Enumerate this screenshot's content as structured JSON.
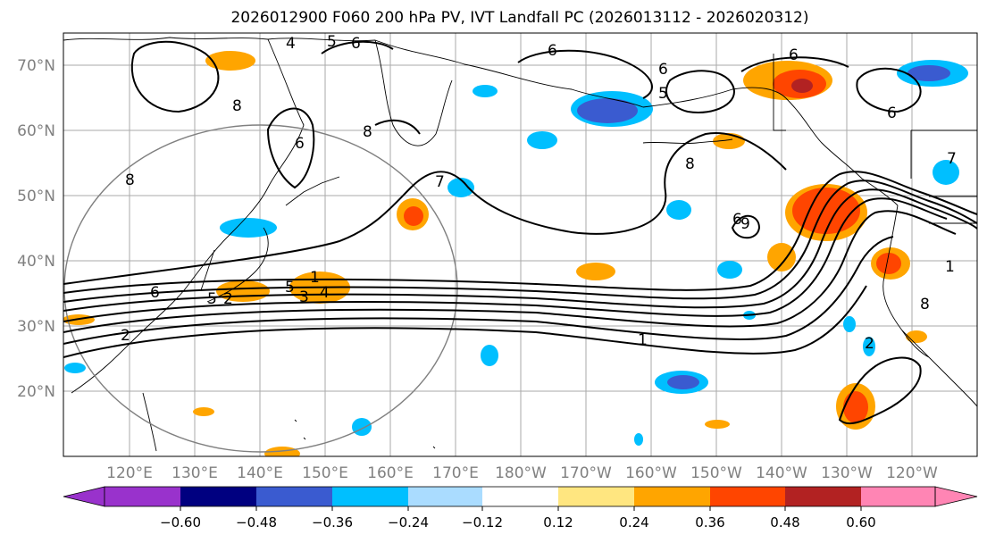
{
  "title": "2026012900 F060 200 hPa PV, IVT Landfall PC (2026013112 - 2026020312)",
  "lat_labels": [
    "70°N",
    "60°N",
    "50°N",
    "40°N",
    "30°N",
    "20°N"
  ],
  "lon_labels": [
    "120°E",
    "130°E",
    "140°E",
    "150°E",
    "160°E",
    "170°E",
    "180°W",
    "170°W",
    "160°W",
    "150°W",
    "140°W",
    "130°W",
    "120°W"
  ],
  "contour_labels": [
    "4",
    "5",
    "6",
    "6",
    "6",
    "6",
    "5",
    "6",
    "8",
    "8",
    "6",
    "8",
    "7",
    "8",
    "6",
    "9",
    "7",
    "1",
    "8",
    "5",
    "1",
    "2",
    "6",
    "4",
    "3",
    "5",
    "2",
    "1",
    "2"
  ],
  "colorbar": {
    "colors": [
      "#9932cc",
      "#000080",
      "#3a5bd0",
      "#00bfff",
      "#aadcff",
      "#ffffff",
      "#ffe680",
      "#ffa500",
      "#ff4500",
      "#b22222",
      "#ff85b4"
    ],
    "tick_labels": [
      "−0.60",
      "−0.48",
      "−0.36",
      "−0.24",
      "−0.12",
      "0.12",
      "0.24",
      "0.36",
      "0.48",
      "0.60"
    ]
  }
}
